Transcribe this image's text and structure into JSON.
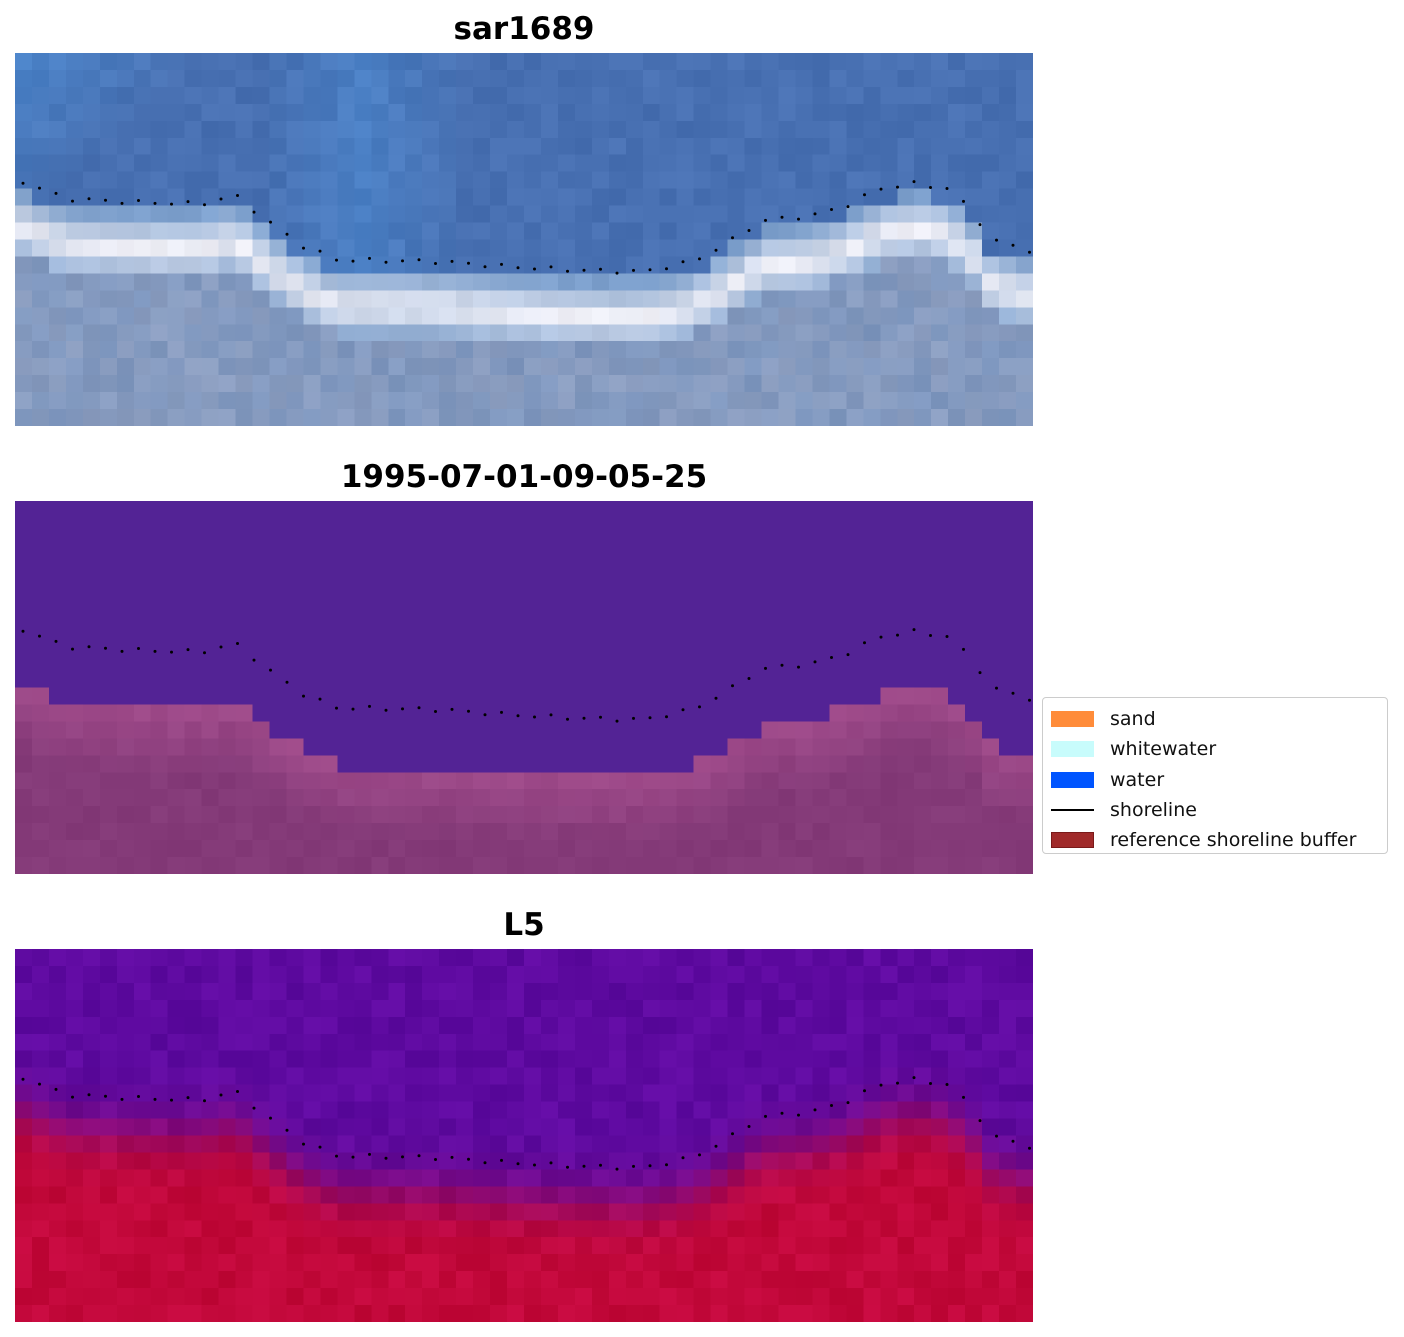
{
  "panels": [
    {
      "title": "sar1689",
      "kind": "rgb"
    },
    {
      "title": "1995-07-01-09-05-25",
      "kind": "classified"
    },
    {
      "title": "L5",
      "kind": "index"
    }
  ],
  "legend": {
    "items": [
      {
        "label": "sand",
        "type": "patch",
        "color": "#ff8c3a"
      },
      {
        "label": "whitewater",
        "type": "patch",
        "color": "#c8fcfc"
      },
      {
        "label": "water",
        "type": "patch",
        "color": "#0055ff"
      },
      {
        "label": "shoreline",
        "type": "line",
        "color": "#000000"
      },
      {
        "label": "reference shoreline buffer",
        "type": "patch",
        "color": "#a02a2a",
        "edge": "#7a1a1a"
      }
    ]
  },
  "colors": {
    "water_class": "#532395",
    "buffer_class": "#843a78",
    "sand_blend": "#a85090",
    "index_low": "#5e0aa0",
    "index_high": "#c2083a",
    "shoreline_dots": "#000000"
  }
}
